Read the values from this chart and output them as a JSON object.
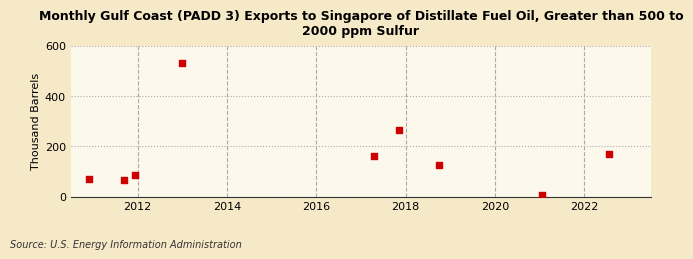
{
  "title": "Monthly Gulf Coast (PADD 3) Exports to Singapore of Distillate Fuel Oil, Greater than 500 to\n2000 ppm Sulfur",
  "ylabel": "Thousand Barrels",
  "source": "Source: U.S. Energy Information Administration",
  "background_color": "#f5e9c8",
  "plot_background_color": "#fdf8ec",
  "dot_color": "#cc0000",
  "dot_size": 14,
  "xlim": [
    2010.5,
    2023.5
  ],
  "ylim": [
    0,
    600
  ],
  "yticks": [
    0,
    200,
    400,
    600
  ],
  "xticks": [
    2012,
    2014,
    2016,
    2018,
    2020,
    2022
  ],
  "data_x": [
    2010.9,
    2011.7,
    2011.95,
    2013.0,
    2017.3,
    2017.85,
    2018.75,
    2021.05,
    2022.55
  ],
  "data_y": [
    70,
    65,
    88,
    530,
    160,
    265,
    125,
    5,
    168
  ]
}
